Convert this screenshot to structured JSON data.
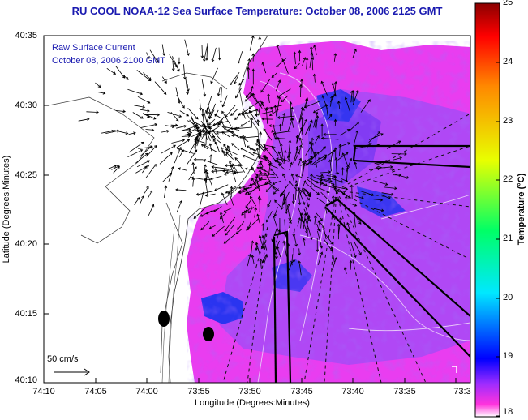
{
  "title": "RU COOL  NOAA-12  Sea Surface Temperature:  October 08, 2006 2125 GMT",
  "overlay": {
    "line1": "Raw Surface Current",
    "line2": "October 08, 2006 2100 GMT"
  },
  "axes": {
    "ylabel": "Latitude (Degrees:Minutes)",
    "xlabel": "Longitude (Degrees:Minutes)",
    "yticks": [
      "40:35",
      "40:30",
      "40:25",
      "40:20",
      "40:15",
      "40:10"
    ],
    "xticks": [
      "74:10",
      "74:05",
      "74:00",
      "73:55",
      "73:50",
      "73:45",
      "73:40",
      "73:35",
      "73:3"
    ]
  },
  "colorbar": {
    "label": "Temperature (°C)",
    "ticks": [
      "25",
      "24",
      "23",
      "22",
      "21",
      "20",
      "19",
      "18"
    ],
    "range": [
      18,
      25
    ],
    "colors": [
      "#ff33dd",
      "#9d2cff",
      "#0000ff",
      "#00e8ff",
      "#00ff66",
      "#e8ff00",
      "#ff8800",
      "#ff0000",
      "#8b0000"
    ]
  },
  "scale": {
    "label": "50 cm/s"
  },
  "colors": {
    "ocean_warm": "#e93df0",
    "ocean_mid": "#b048f5",
    "ocean_cool": "#6a3cf2",
    "ocean_cold": "#2a34f0",
    "land": "#ffffff",
    "title_text": "#1a1ab0"
  }
}
